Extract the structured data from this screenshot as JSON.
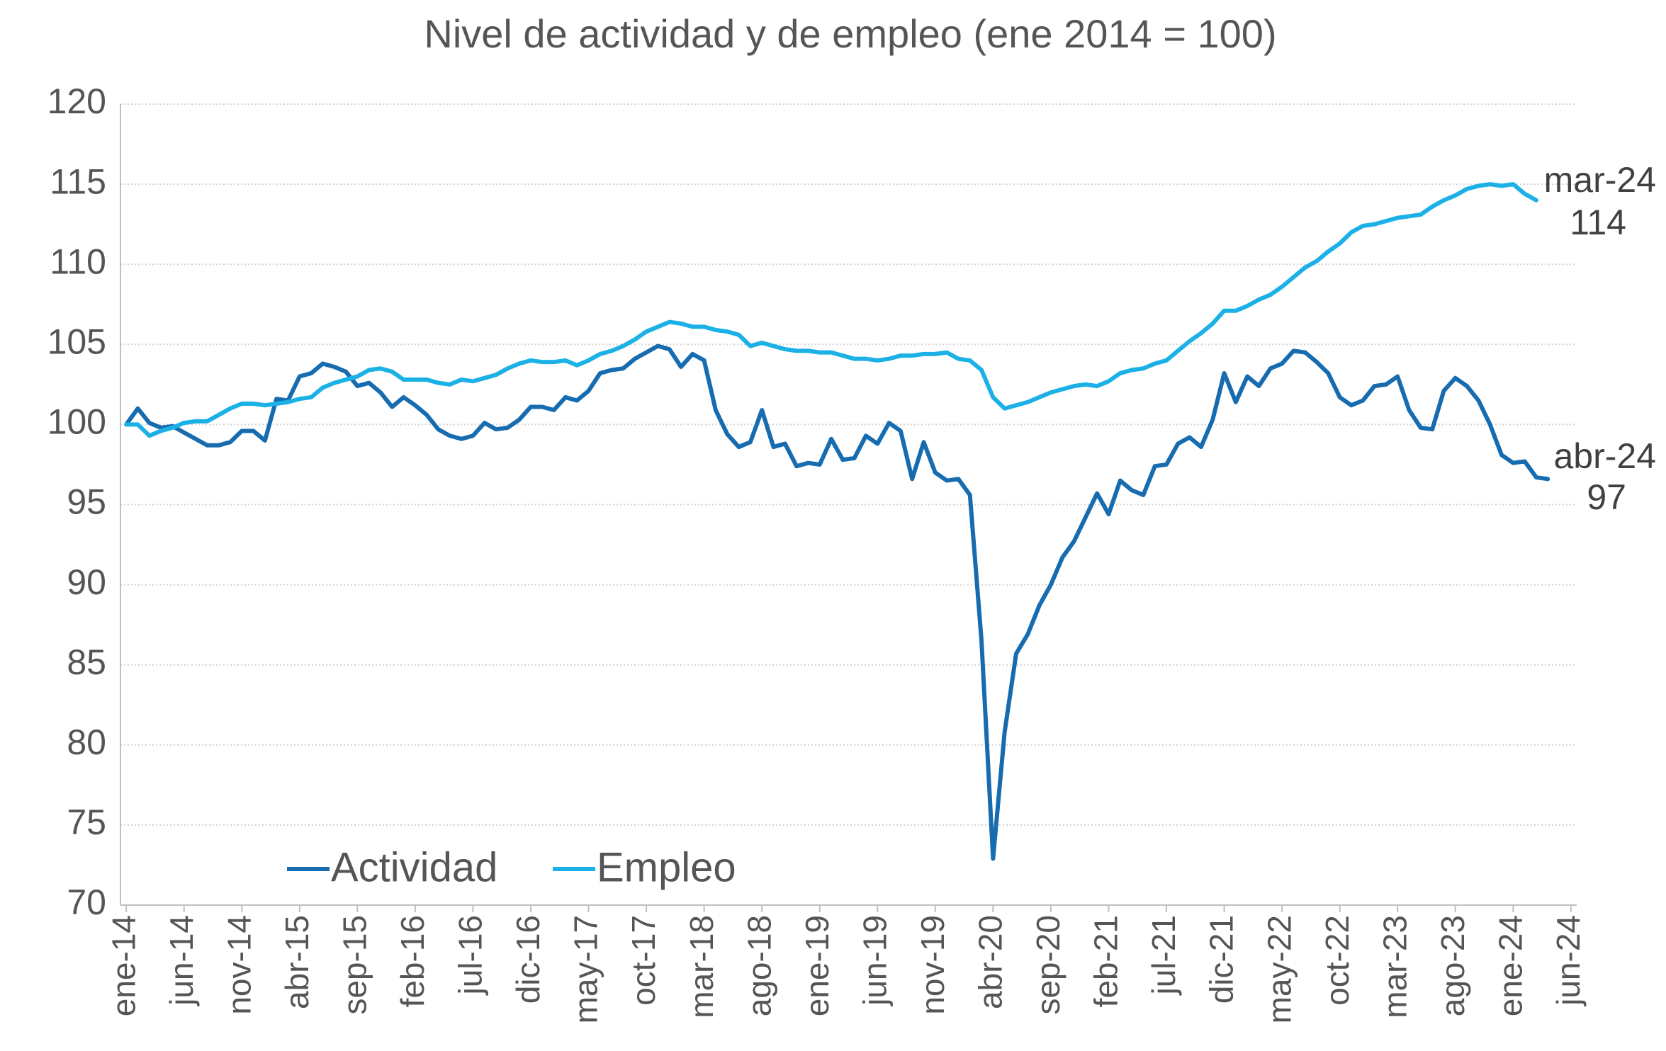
{
  "chart_data": {
    "type": "line",
    "title": "Nivel de actividad y de empleo (ene 2014 = 100)",
    "categories": [
      "ene-14",
      null,
      null,
      null,
      null,
      "jun-14",
      null,
      null,
      null,
      null,
      "nov-14",
      null,
      null,
      null,
      null,
      "abr-15",
      null,
      null,
      null,
      null,
      "sep-15",
      null,
      null,
      null,
      null,
      "feb-16",
      null,
      null,
      null,
      null,
      "jul-16",
      null,
      null,
      null,
      null,
      "dic-16",
      null,
      null,
      null,
      null,
      "may-17",
      null,
      null,
      null,
      null,
      "oct-17",
      null,
      null,
      null,
      null,
      "mar-18",
      null,
      null,
      null,
      null,
      "ago-18",
      null,
      null,
      null,
      null,
      "ene-19",
      null,
      null,
      null,
      null,
      "jun-19",
      null,
      null,
      null,
      null,
      "nov-19",
      null,
      null,
      null,
      null,
      "abr-20",
      null,
      null,
      null,
      null,
      "sep-20",
      null,
      null,
      null,
      null,
      "feb-21",
      null,
      null,
      null,
      null,
      "jul-21",
      null,
      null,
      null,
      null,
      "dic-21",
      null,
      null,
      null,
      null,
      "may-22",
      null,
      null,
      null,
      null,
      "oct-22",
      null,
      null,
      null,
      null,
      "mar-23",
      null,
      null,
      null,
      null,
      "ago-23",
      null,
      null,
      null,
      null,
      "ene-24",
      null,
      null,
      null,
      null,
      "jun-24"
    ],
    "series": [
      {
        "name": "Actividad",
        "color": "#176cb0",
        "values": [
          100,
          101,
          100.1,
          99.8,
          99.9,
          99.5,
          99.1,
          98.7,
          98.7,
          98.9,
          99.6,
          99.6,
          99,
          101.6,
          101.5,
          103,
          103.2,
          103.8,
          103.6,
          103.3,
          102.4,
          102.6,
          102,
          101.1,
          101.7,
          101.2,
          100.6,
          99.7,
          99.3,
          99.1,
          99.3,
          100.1,
          99.7,
          99.8,
          100.3,
          101.1,
          101.1,
          100.9,
          101.7,
          101.5,
          102.1,
          103.2,
          103.4,
          103.5,
          104.1,
          104.5,
          104.9,
          104.7,
          103.6,
          104.4,
          104,
          100.9,
          99.4,
          98.6,
          98.9,
          100.9,
          98.6,
          98.8,
          97.4,
          97.6,
          97.5,
          99.1,
          97.8,
          97.9,
          99.3,
          98.8,
          100.1,
          99.6,
          96.6,
          98.9,
          97,
          96.5,
          96.6,
          95.6,
          86.5,
          72.9,
          80.8,
          85.7,
          86.9,
          88.7,
          90,
          91.7,
          92.7,
          94.2,
          95.7,
          94.4,
          96.5,
          95.9,
          95.6,
          97.4,
          97.5,
          98.8,
          99.2,
          98.6,
          100.3,
          103.2,
          101.4,
          103,
          102.4,
          103.5,
          103.8,
          104.6,
          104.5,
          103.9,
          103.2,
          101.7,
          101.2,
          101.5,
          102.4,
          102.5,
          103,
          100.9,
          99.8,
          99.7,
          102.1,
          102.9,
          102.4,
          101.5,
          100,
          98.1,
          97.6,
          97.7,
          96.7,
          96.6,
          null,
          null
        ]
      },
      {
        "name": "Empleo",
        "color": "#1bb1e7",
        "values": [
          100,
          100,
          99.3,
          99.6,
          99.8,
          100.1,
          100.2,
          100.2,
          100.6,
          101,
          101.3,
          101.3,
          101.2,
          101.3,
          101.4,
          101.6,
          101.7,
          102.3,
          102.6,
          102.8,
          103,
          103.4,
          103.5,
          103.3,
          102.8,
          102.8,
          102.8,
          102.6,
          102.5,
          102.8,
          102.7,
          102.9,
          103.1,
          103.5,
          103.8,
          104,
          103.9,
          103.9,
          104,
          103.7,
          104,
          104.4,
          104.6,
          104.9,
          105.3,
          105.8,
          106.1,
          106.4,
          106.3,
          106.1,
          106.1,
          105.9,
          105.8,
          105.6,
          104.9,
          105.1,
          104.9,
          104.7,
          104.6,
          104.6,
          104.5,
          104.5,
          104.3,
          104.1,
          104.1,
          104,
          104.1,
          104.3,
          104.3,
          104.4,
          104.4,
          104.5,
          104.1,
          104,
          103.4,
          101.7,
          101,
          101.2,
          101.4,
          101.7,
          102,
          102.2,
          102.4,
          102.5,
          102.4,
          102.7,
          103.2,
          103.4,
          103.5,
          103.8,
          104,
          104.6,
          105.2,
          105.7,
          106.3,
          107.1,
          107.1,
          107.4,
          107.8,
          108.1,
          108.6,
          109.2,
          109.8,
          110.2,
          110.8,
          111.3,
          112,
          112.4,
          112.5,
          112.7,
          112.9,
          113,
          113.1,
          113.6,
          114,
          114.3,
          114.7,
          114.9,
          115,
          114.9,
          115,
          114.4,
          114,
          null,
          null,
          null
        ]
      }
    ],
    "ylim": [
      70,
      120
    ],
    "yticks": [
      70,
      75,
      80,
      85,
      90,
      95,
      100,
      105,
      110,
      115,
      120
    ],
    "grid": true,
    "legend": "lower left",
    "annotations": [
      {
        "lines": [
          "mar-24",
          "114"
        ]
      },
      {
        "lines": [
          "abr-24",
          "97"
        ]
      }
    ]
  }
}
